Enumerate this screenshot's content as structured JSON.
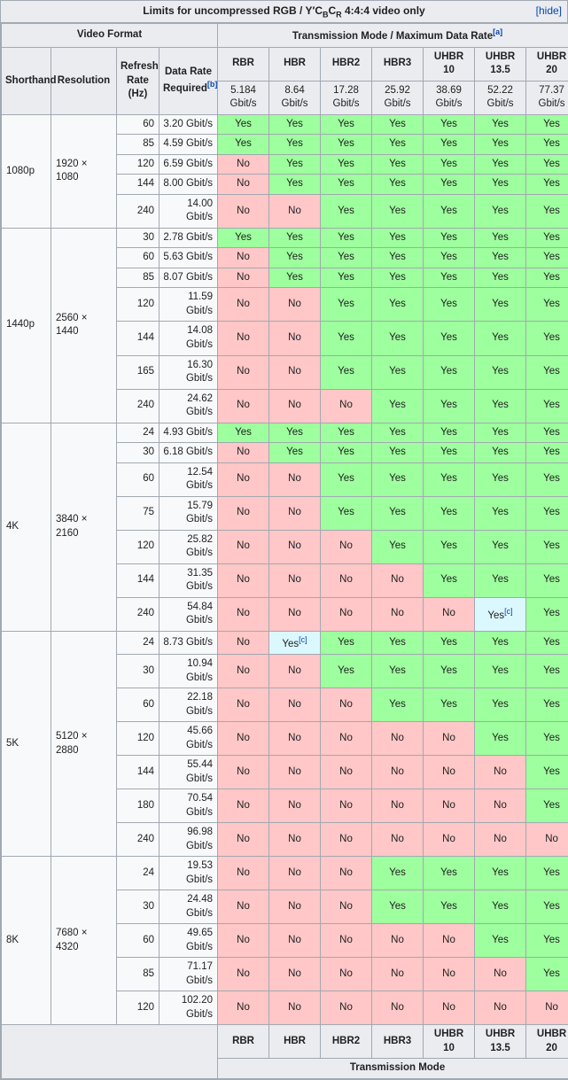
{
  "caption": "Limits for uncompressed RGB / Y′C_BC_R 4:4:4 video only",
  "hide": "[hide]",
  "headers": {
    "video_format": "Video Format",
    "trans_mode_max": "Transmission Mode / Maximum Data Rate",
    "sup_a": "[a]",
    "shorthand": "Shorthand",
    "resolution": "Resolution",
    "refresh": "Refresh Rate (Hz)",
    "datarate": "Data Rate Required",
    "sup_b": "[b]",
    "trans_mode": "Transmission Mode"
  },
  "note_c": "[c]",
  "modes": [
    {
      "name": "RBR",
      "rate": "5.184 Gbit/s"
    },
    {
      "name": "HBR",
      "rate": "8.64 Gbit/s"
    },
    {
      "name": "HBR2",
      "rate": "17.28 Gbit/s"
    },
    {
      "name": "HBR3",
      "rate": "25.92 Gbit/s"
    },
    {
      "name": "UHBR 10",
      "rate": "38.69 Gbit/s"
    },
    {
      "name": "UHBR 13.5",
      "rate": "52.22 Gbit/s"
    },
    {
      "name": "UHBR 20",
      "rate": "77.37 Gbit/s"
    }
  ],
  "groups": [
    {
      "shorthand": "1080p",
      "resolution": "1920 × 1080",
      "rows": [
        {
          "hz": 60,
          "rate": "3.20 Gbit/s",
          "cells": [
            "Yes",
            "Yes",
            "Yes",
            "Yes",
            "Yes",
            "Yes",
            "Yes"
          ]
        },
        {
          "hz": 85,
          "rate": "4.59 Gbit/s",
          "cells": [
            "Yes",
            "Yes",
            "Yes",
            "Yes",
            "Yes",
            "Yes",
            "Yes"
          ]
        },
        {
          "hz": 120,
          "rate": "6.59 Gbit/s",
          "cells": [
            "No",
            "Yes",
            "Yes",
            "Yes",
            "Yes",
            "Yes",
            "Yes"
          ]
        },
        {
          "hz": 144,
          "rate": "8.00 Gbit/s",
          "cells": [
            "No",
            "Yes",
            "Yes",
            "Yes",
            "Yes",
            "Yes",
            "Yes"
          ]
        },
        {
          "hz": 240,
          "rate": "14.00 Gbit/s",
          "cells": [
            "No",
            "No",
            "Yes",
            "Yes",
            "Yes",
            "Yes",
            "Yes"
          ]
        }
      ]
    },
    {
      "shorthand": "1440p",
      "resolution": "2560 × 1440",
      "rows": [
        {
          "hz": 30,
          "rate": "2.78 Gbit/s",
          "cells": [
            "Yes",
            "Yes",
            "Yes",
            "Yes",
            "Yes",
            "Yes",
            "Yes"
          ]
        },
        {
          "hz": 60,
          "rate": "5.63 Gbit/s",
          "cells": [
            "No",
            "Yes",
            "Yes",
            "Yes",
            "Yes",
            "Yes",
            "Yes"
          ]
        },
        {
          "hz": 85,
          "rate": "8.07 Gbit/s",
          "cells": [
            "No",
            "Yes",
            "Yes",
            "Yes",
            "Yes",
            "Yes",
            "Yes"
          ]
        },
        {
          "hz": 120,
          "rate": "11.59 Gbit/s",
          "cells": [
            "No",
            "No",
            "Yes",
            "Yes",
            "Yes",
            "Yes",
            "Yes"
          ]
        },
        {
          "hz": 144,
          "rate": "14.08 Gbit/s",
          "cells": [
            "No",
            "No",
            "Yes",
            "Yes",
            "Yes",
            "Yes",
            "Yes"
          ]
        },
        {
          "hz": 165,
          "rate": "16.30 Gbit/s",
          "cells": [
            "No",
            "No",
            "Yes",
            "Yes",
            "Yes",
            "Yes",
            "Yes"
          ]
        },
        {
          "hz": 240,
          "rate": "24.62 Gbit/s",
          "cells": [
            "No",
            "No",
            "No",
            "Yes",
            "Yes",
            "Yes",
            "Yes"
          ]
        }
      ]
    },
    {
      "shorthand": "4K",
      "resolution": "3840 × 2160",
      "rows": [
        {
          "hz": 24,
          "rate": "4.93 Gbit/s",
          "cells": [
            "Yes",
            "Yes",
            "Yes",
            "Yes",
            "Yes",
            "Yes",
            "Yes"
          ]
        },
        {
          "hz": 30,
          "rate": "6.18 Gbit/s",
          "cells": [
            "No",
            "Yes",
            "Yes",
            "Yes",
            "Yes",
            "Yes",
            "Yes"
          ]
        },
        {
          "hz": 60,
          "rate": "12.54 Gbit/s",
          "cells": [
            "No",
            "No",
            "Yes",
            "Yes",
            "Yes",
            "Yes",
            "Yes"
          ]
        },
        {
          "hz": 75,
          "rate": "15.79 Gbit/s",
          "cells": [
            "No",
            "No",
            "Yes",
            "Yes",
            "Yes",
            "Yes",
            "Yes"
          ]
        },
        {
          "hz": 120,
          "rate": "25.82 Gbit/s",
          "cells": [
            "No",
            "No",
            "No",
            "Yes",
            "Yes",
            "Yes",
            "Yes"
          ]
        },
        {
          "hz": 144,
          "rate": "31.35 Gbit/s",
          "cells": [
            "No",
            "No",
            "No",
            "No",
            "Yes",
            "Yes",
            "Yes"
          ]
        },
        {
          "hz": 240,
          "rate": "54.84 Gbit/s",
          "cells": [
            "No",
            "No",
            "No",
            "No",
            "No",
            "Yes*",
            "Yes"
          ]
        }
      ]
    },
    {
      "shorthand": "5K",
      "resolution": "5120 × 2880",
      "rows": [
        {
          "hz": 24,
          "rate": "8.73 Gbit/s",
          "cells": [
            "No",
            "Yes*",
            "Yes",
            "Yes",
            "Yes",
            "Yes",
            "Yes"
          ]
        },
        {
          "hz": 30,
          "rate": "10.94 Gbit/s",
          "cells": [
            "No",
            "No",
            "Yes",
            "Yes",
            "Yes",
            "Yes",
            "Yes"
          ]
        },
        {
          "hz": 60,
          "rate": "22.18 Gbit/s",
          "cells": [
            "No",
            "No",
            "No",
            "Yes",
            "Yes",
            "Yes",
            "Yes"
          ]
        },
        {
          "hz": 120,
          "rate": "45.66 Gbit/s",
          "cells": [
            "No",
            "No",
            "No",
            "No",
            "No",
            "Yes",
            "Yes"
          ]
        },
        {
          "hz": 144,
          "rate": "55.44 Gbit/s",
          "cells": [
            "No",
            "No",
            "No",
            "No",
            "No",
            "No",
            "Yes"
          ]
        },
        {
          "hz": 180,
          "rate": "70.54 Gbit/s",
          "cells": [
            "No",
            "No",
            "No",
            "No",
            "No",
            "No",
            "Yes"
          ]
        },
        {
          "hz": 240,
          "rate": "96.98 Gbit/s",
          "cells": [
            "No",
            "No",
            "No",
            "No",
            "No",
            "No",
            "No"
          ]
        }
      ]
    },
    {
      "shorthand": "8K",
      "resolution": "7680 × 4320",
      "rows": [
        {
          "hz": 24,
          "rate": "19.53 Gbit/s",
          "cells": [
            "No",
            "No",
            "No",
            "Yes",
            "Yes",
            "Yes",
            "Yes"
          ]
        },
        {
          "hz": 30,
          "rate": "24.48 Gbit/s",
          "cells": [
            "No",
            "No",
            "No",
            "Yes",
            "Yes",
            "Yes",
            "Yes"
          ]
        },
        {
          "hz": 60,
          "rate": "49.65 Gbit/s",
          "cells": [
            "No",
            "No",
            "No",
            "No",
            "No",
            "Yes",
            "Yes"
          ]
        },
        {
          "hz": 85,
          "rate": "71.17 Gbit/s",
          "cells": [
            "No",
            "No",
            "No",
            "No",
            "No",
            "No",
            "Yes"
          ]
        },
        {
          "hz": 120,
          "rate": "102.20 Gbit/s",
          "cells": [
            "No",
            "No",
            "No",
            "No",
            "No",
            "No",
            "No"
          ]
        }
      ]
    }
  ],
  "colors": {
    "yes": "#9eff9e",
    "no": "#ffc7c7",
    "special": "#dbf8ff",
    "header_bg": "#eaecf0",
    "border": "#a2a9b1"
  }
}
